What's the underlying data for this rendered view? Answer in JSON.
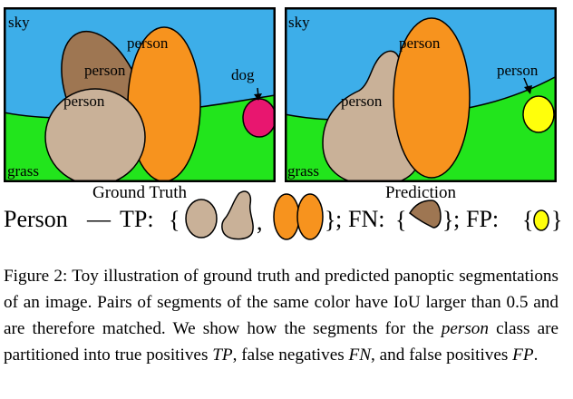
{
  "panels": {
    "ground_truth": {
      "title": "Ground Truth",
      "labels": {
        "sky": "sky",
        "grass": "grass",
        "person_a": "person",
        "person_b": "person",
        "person_c": "person",
        "dog": "dog"
      }
    },
    "prediction": {
      "title": "Prediction",
      "labels": {
        "sky": "sky",
        "grass": "grass",
        "person_a": "person",
        "person_b": "person",
        "person_c": "person"
      }
    }
  },
  "legend": {
    "class_name": "Person",
    "dash": "—",
    "tp_label": "TP:",
    "fn_label": "FN:",
    "fp_label": "FP:",
    "open_brace": "{",
    "close_brace": "}",
    "comma": ",",
    "semicolon": ";"
  },
  "colors": {
    "sky": "#3daee9",
    "grass": "#22e51c",
    "tan": "#c9b198",
    "brown": "#9e7652",
    "orange": "#f7931e",
    "magenta": "#e8166f",
    "yellow": "#ffff0b"
  },
  "caption": {
    "prefix": "Figure 2: ",
    "part1": "Toy illustration of ground truth and predicted panoptic segmentations of an image. Pairs of segments of the same color have IoU larger than 0.5 and are therefore matched. We show how the segments for the ",
    "emph": "person",
    "part2": " class are partitioned into true positives ",
    "tp": "TP",
    "part3": ", false negatives ",
    "fn": "FN",
    "part4": ", and false positives ",
    "fp": "FP",
    "part5": "."
  }
}
